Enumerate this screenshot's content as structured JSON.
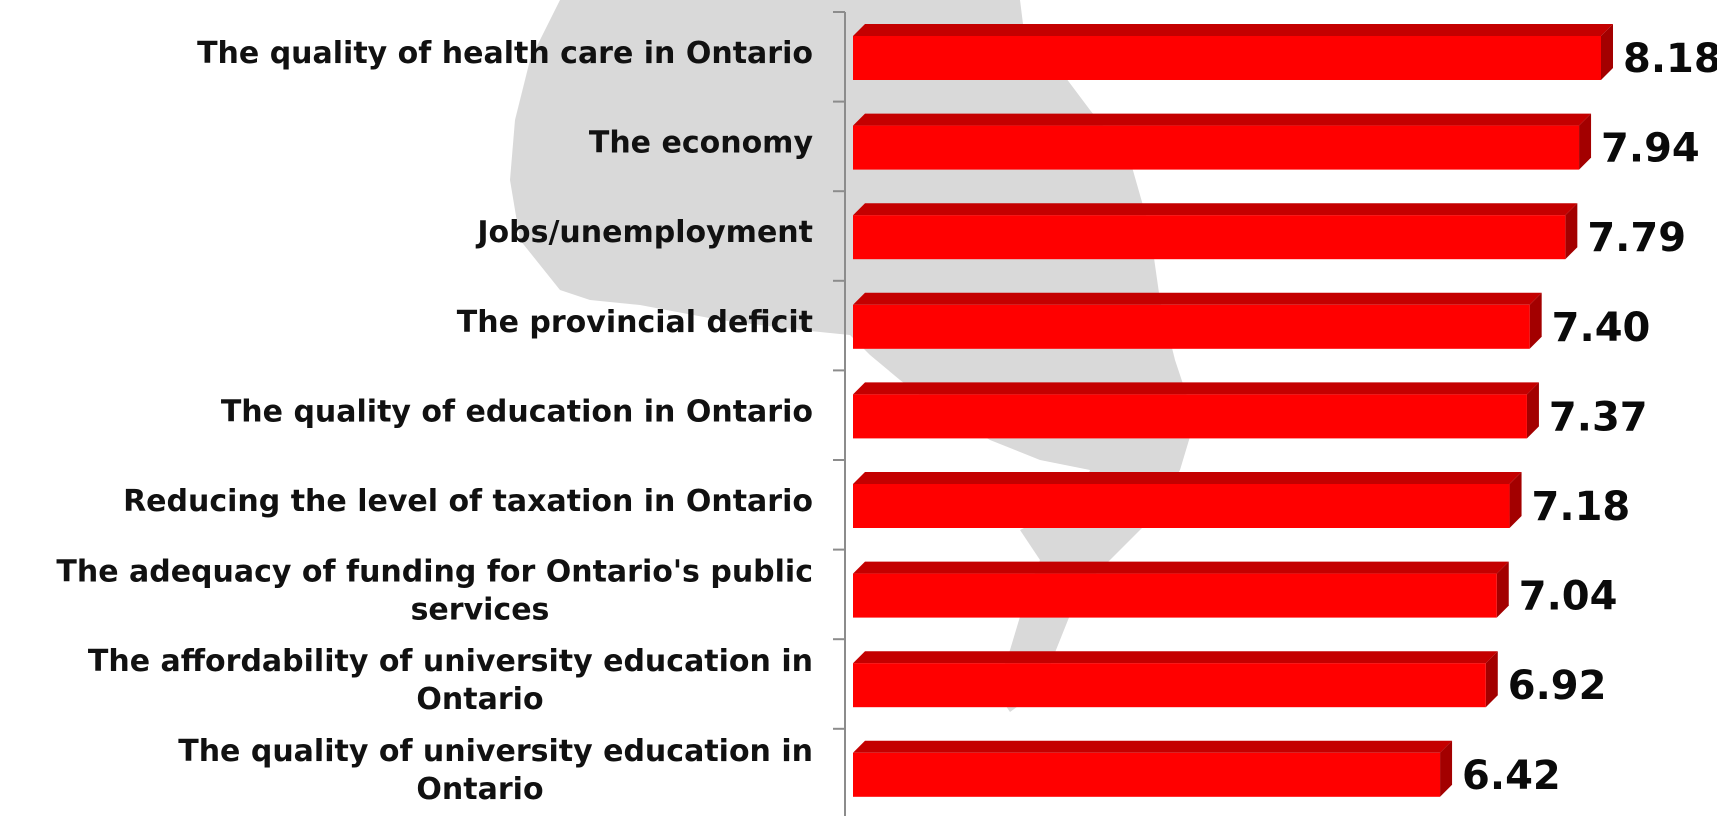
{
  "chart_data": {
    "type": "bar",
    "orientation": "horizontal",
    "categories": [
      "The quality of health care in Ontario",
      "The economy",
      "Jobs/unemployment",
      "The provincial deficit",
      "The quality of education in Ontario",
      "Reducing the level of taxation in Ontario",
      "The adequacy of funding for Ontario's public services",
      "The affordability of university education in Ontario",
      "The quality of university education in Ontario"
    ],
    "values": [
      8.18,
      7.94,
      7.79,
      7.4,
      7.37,
      7.18,
      7.04,
      6.92,
      6.42
    ],
    "data_labels": [
      "8.18",
      "7.94",
      "7.79",
      "7.40",
      "7.37",
      "7.18",
      "7.04",
      "6.92",
      "6.42"
    ],
    "title": "",
    "xlabel": "",
    "ylabel": "",
    "xlim": [
      0,
      8.18
    ],
    "grid": false,
    "legend": "none",
    "bar_style": "3d",
    "colors": {
      "bar_front": "#ff0000",
      "bar_top": "#c40000",
      "bar_side": "#a30000",
      "background_map": "#d9d9d9",
      "axis": "#8c8c8c",
      "text": "#111111"
    }
  }
}
